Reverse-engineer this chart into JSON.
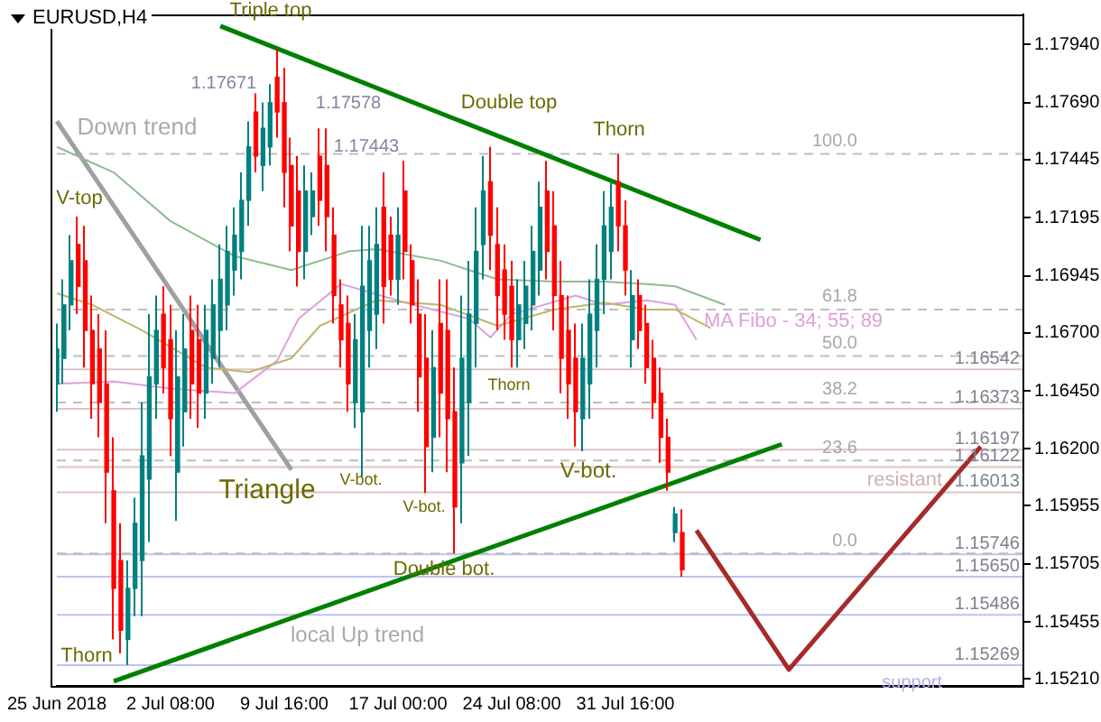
{
  "chart_data": {
    "type": "candlestick",
    "title": "EURUSD,H4",
    "categories": [
      "25 Jun 2018",
      null,
      null,
      null,
      null,
      null,
      null,
      null,
      null,
      null,
      null,
      null,
      null,
      null,
      null,
      null,
      "2 Jul 08:00",
      null,
      null,
      null,
      null,
      null,
      null,
      null,
      null,
      null,
      null,
      null,
      null,
      null,
      null,
      null,
      "9 Jul 16:00",
      null,
      null,
      null,
      null,
      null,
      null,
      null,
      null,
      null,
      null,
      null,
      null,
      null,
      null,
      null,
      "17 Jul 00:00",
      null,
      null,
      null,
      null,
      null,
      null,
      null,
      null,
      null,
      null,
      null,
      null,
      null,
      null,
      null,
      "24 Jul 08:00",
      null,
      null,
      null,
      null,
      null,
      null,
      null,
      null,
      null,
      null,
      null,
      null,
      null,
      null,
      null,
      "31 Jul 16:00",
      null,
      null,
      null,
      null,
      null,
      null,
      null,
      null,
      null,
      null,
      null,
      null,
      null,
      null,
      null,
      null,
      null,
      null,
      null,
      null,
      null,
      null,
      null,
      null,
      null,
      null,
      null,
      null,
      null,
      null,
      null,
      null,
      null,
      null,
      null,
      null,
      null,
      null,
      null,
      null,
      null,
      null,
      null,
      null,
      null,
      null,
      null,
      null,
      null,
      null,
      null,
      null,
      null,
      null,
      null,
      null
    ],
    "ohlc": [
      [
        1.1648,
        1.1674,
        1.1636,
        1.1663
      ],
      [
        1.1659,
        1.1693,
        1.1648,
        1.1682
      ],
      [
        1.1682,
        1.1712,
        1.1671,
        1.1701
      ],
      [
        1.1708,
        1.172,
        1.1678,
        1.169
      ],
      [
        1.1701,
        1.1716,
        1.1655,
        1.1671
      ],
      [
        1.1671,
        1.1686,
        1.1633,
        1.1648
      ],
      [
        1.1663,
        1.1678,
        1.1625,
        1.164
      ],
      [
        1.1648,
        1.1671,
        1.1588,
        1.161
      ],
      [
        1.1602,
        1.1625,
        1.1538,
        1.156
      ],
      [
        1.1572,
        1.1588,
        1.1532,
        1.1542
      ],
      [
        1.1538,
        1.1572,
        1.1527,
        1.156
      ],
      [
        1.156,
        1.1599,
        1.1548,
        1.1588
      ],
      [
        1.1572,
        1.164,
        1.1548,
        1.1617
      ],
      [
        1.1607,
        1.1678,
        1.158,
        1.1651
      ],
      [
        1.1648,
        1.1686,
        1.1633,
        1.1671
      ],
      [
        1.1678,
        1.169,
        1.1644,
        1.1655
      ],
      [
        1.1667,
        1.1682,
        1.1617,
        1.1633
      ],
      [
        1.161,
        1.1671,
        1.1589,
        1.1651
      ],
      [
        1.1636,
        1.1678,
        1.1621,
        1.1663
      ],
      [
        1.1671,
        1.1686,
        1.1633,
        1.1648
      ],
      [
        1.1667,
        1.1682,
        1.1629,
        1.1644
      ],
      [
        1.1644,
        1.1682,
        1.1633,
        1.1671
      ],
      [
        1.1659,
        1.1693,
        1.1648,
        1.1682
      ],
      [
        1.1671,
        1.1708,
        1.1655,
        1.1693
      ],
      [
        1.1682,
        1.1716,
        1.1671,
        1.1705
      ],
      [
        1.1697,
        1.1724,
        1.1686,
        1.1712
      ],
      [
        1.1705,
        1.1739,
        1.1693,
        1.1727
      ],
      [
        1.1727,
        1.1761,
        1.1716,
        1.175
      ],
      [
        1.1765,
        1.1773,
        1.1739,
        1.1746
      ],
      [
        1.1742,
        1.1769,
        1.1731,
        1.1758
      ],
      [
        1.175,
        1.1777,
        1.1742,
        1.1769
      ],
      [
        1.178,
        1.1792,
        1.1754,
        1.1765
      ],
      [
        1.1769,
        1.1784,
        1.1724,
        1.1739
      ],
      [
        1.1742,
        1.1754,
        1.1705,
        1.1716
      ],
      [
        1.1731,
        1.1746,
        1.169,
        1.1705
      ],
      [
        1.1705,
        1.1742,
        1.1693,
        1.1731
      ],
      [
        1.172,
        1.1739,
        1.1712,
        1.1731
      ],
      [
        1.1746,
        1.1758,
        1.1716,
        1.1727
      ],
      [
        1.1742,
        1.1758,
        1.1705,
        1.172
      ],
      [
        1.1712,
        1.1724,
        1.1674,
        1.1686
      ],
      [
        1.1682,
        1.1693,
        1.1655,
        1.1667
      ],
      [
        1.1674,
        1.1686,
        1.1636,
        1.1648
      ],
      [
        1.164,
        1.1678,
        1.1629,
        1.1667
      ],
      [
        1.1636,
        1.1716,
        1.1608,
        1.169
      ],
      [
        1.1671,
        1.1716,
        1.1655,
        1.1701
      ],
      [
        1.1678,
        1.1724,
        1.1663,
        1.1708
      ],
      [
        1.1724,
        1.1739,
        1.1674,
        1.169
      ],
      [
        1.1712,
        1.172,
        1.1686,
        1.1693
      ],
      [
        1.1693,
        1.1724,
        1.1682,
        1.1712
      ],
      [
        1.1731,
        1.1744,
        1.1693,
        1.1705
      ],
      [
        1.1701,
        1.1708,
        1.1674,
        1.1682
      ],
      [
        1.1678,
        1.1693,
        1.1636,
        1.1651
      ],
      [
        1.1659,
        1.1678,
        1.1601,
        1.1621
      ],
      [
        1.1625,
        1.1671,
        1.161,
        1.1655
      ],
      [
        1.1674,
        1.1693,
        1.1625,
        1.1644
      ],
      [
        1.1671,
        1.1693,
        1.161,
        1.1633
      ],
      [
        1.1636,
        1.1655,
        1.1575,
        1.1595
      ],
      [
        1.1614,
        1.1686,
        1.1588,
        1.1659
      ],
      [
        1.164,
        1.1701,
        1.1617,
        1.1678
      ],
      [
        1.1674,
        1.1724,
        1.1655,
        1.1705
      ],
      [
        1.1708,
        1.1746,
        1.1693,
        1.1731
      ],
      [
        1.1735,
        1.175,
        1.1697,
        1.1712
      ],
      [
        1.1708,
        1.1724,
        1.1671,
        1.1686
      ],
      [
        1.1697,
        1.1708,
        1.1667,
        1.1678
      ],
      [
        1.169,
        1.1701,
        1.1655,
        1.1667
      ],
      [
        1.1667,
        1.1693,
        1.1655,
        1.1682
      ],
      [
        1.1674,
        1.1701,
        1.1663,
        1.169
      ],
      [
        1.1682,
        1.1716,
        1.1671,
        1.1705
      ],
      [
        1.1697,
        1.1735,
        1.1686,
        1.1724
      ],
      [
        1.1731,
        1.1744,
        1.1693,
        1.1705
      ],
      [
        1.1716,
        1.1731,
        1.1671,
        1.1686
      ],
      [
        1.1686,
        1.1701,
        1.1644,
        1.1659
      ],
      [
        1.1671,
        1.1686,
        1.1633,
        1.1648
      ],
      [
        1.1659,
        1.1674,
        1.1621,
        1.1636
      ],
      [
        1.1633,
        1.1674,
        1.1619,
        1.1659
      ],
      [
        1.1648,
        1.1693,
        1.1633,
        1.1678
      ],
      [
        1.1671,
        1.1708,
        1.1655,
        1.1693
      ],
      [
        1.1693,
        1.1731,
        1.1678,
        1.1716
      ],
      [
        1.1705,
        1.1735,
        1.1693,
        1.1724
      ],
      [
        1.1735,
        1.1747,
        1.1705,
        1.1716
      ],
      [
        1.1716,
        1.1727,
        1.1686,
        1.1697
      ],
      [
        1.1667,
        1.1697,
        1.1655,
        1.1686
      ],
      [
        1.1686,
        1.1693,
        1.1663,
        1.1671
      ],
      [
        1.1674,
        1.1682,
        1.1648,
        1.1655
      ],
      [
        1.1659,
        1.1667,
        1.1633,
        1.164
      ],
      [
        1.1644,
        1.1655,
        1.1614,
        1.1625
      ],
      [
        1.1625,
        1.1633,
        1.1602,
        1.161
      ],
      [
        1.1584,
        1.1595,
        1.158,
        1.1592
      ],
      [
        1.1584,
        1.1594,
        1.1565,
        1.1568
      ],
      null,
      null,
      null,
      null,
      null,
      null,
      null,
      null,
      null,
      null,
      null,
      null,
      null,
      null,
      null,
      null,
      null,
      null,
      null,
      null,
      null,
      null,
      null,
      null,
      null,
      null,
      null,
      null,
      null,
      null,
      null,
      null,
      null,
      null,
      null,
      null,
      null,
      null,
      null,
      null,
      null,
      null,
      null,
      null,
      null,
      null,
      null,
      null
    ],
    "series": [
      {
        "type": "line",
        "color": "#8fbc8f",
        "values": [
          1.175,
          null,
          null,
          null,
          null,
          null,
          null,
          null,
          1.1739,
          null,
          null,
          null,
          null,
          null,
          null,
          null,
          1.1718,
          null,
          null,
          null,
          null,
          null,
          null,
          null,
          null,
          1.1703,
          null,
          null,
          null,
          null,
          null,
          null,
          null,
          1.1697,
          null,
          null,
          null,
          null,
          null,
          null,
          null,
          1.1705,
          null,
          null,
          null,
          1.1706,
          null,
          null,
          null,
          null,
          null,
          null,
          null,
          null,
          1.1701,
          null,
          null,
          null,
          null,
          null,
          null,
          null,
          1.1693,
          null,
          null,
          null,
          null,
          null,
          null,
          null,
          1.1692,
          null,
          null,
          null,
          null,
          null,
          null,
          1.1692,
          null,
          null,
          null,
          null,
          null,
          1.1691,
          null,
          null,
          null,
          1.169,
          null,
          null,
          null,
          null,
          null,
          null,
          1.1682,
          null,
          null,
          null,
          null,
          null,
          null,
          null,
          null,
          null,
          null,
          null,
          null,
          null,
          null,
          null,
          null,
          null,
          null,
          null,
          null,
          null,
          null,
          null,
          null,
          null,
          null,
          null,
          null,
          null,
          null,
          null,
          null,
          null,
          null,
          null,
          null,
          null,
          null,
          null,
          null,
          null,
          null
        ]
      },
      {
        "type": "line",
        "color": "#bdb76b",
        "values": [
          1.1687,
          null,
          null,
          null,
          null,
          1.1682,
          null,
          null,
          null,
          null,
          null,
          null,
          1.1671,
          null,
          null,
          null,
          null,
          null,
          null,
          null,
          null,
          1.1655,
          null,
          null,
          null,
          null,
          null,
          1.1653,
          null,
          null,
          null,
          null,
          null,
          1.1659,
          null,
          null,
          null,
          1.1673,
          null,
          null,
          null,
          null,
          null,
          null,
          null,
          1.1684,
          null,
          null,
          null,
          null,
          null,
          null,
          null,
          null,
          1.1682,
          null,
          null,
          null,
          null,
          null,
          null,
          null,
          1.1673,
          null,
          null,
          null,
          null,
          null,
          null,
          null,
          1.168,
          null,
          null,
          null,
          null,
          null,
          null,
          1.1683,
          null,
          null,
          null,
          null,
          null,
          1.168,
          null,
          null,
          null,
          1.168,
          null,
          null,
          null,
          null,
          1.1672,
          null,
          null,
          null,
          null,
          null,
          null,
          null,
          null,
          null,
          null,
          null,
          null,
          null,
          null,
          null,
          null,
          null,
          null,
          null,
          null,
          null,
          null,
          null,
          null,
          null,
          null,
          null,
          null,
          null,
          null,
          null,
          null,
          null,
          null,
          null,
          null,
          null,
          null,
          null,
          null,
          null,
          null,
          null,
          null
        ]
      },
      {
        "type": "line",
        "color": "#dda0dd",
        "values": [
          1.1648,
          null,
          null,
          null,
          null,
          null,
          null,
          null,
          1.1649,
          null,
          null,
          null,
          null,
          null,
          null,
          null,
          1.1646,
          null,
          null,
          null,
          null,
          null,
          null,
          null,
          null,
          1.1644,
          null,
          null,
          null,
          null,
          null,
          1.1658,
          null,
          null,
          1.1676,
          null,
          null,
          null,
          null,
          null,
          1.1691,
          null,
          null,
          null,
          null,
          null,
          null,
          null,
          null,
          1.1683,
          null,
          null,
          null,
          null,
          null,
          null,
          null,
          null,
          1.1676,
          null,
          null,
          1.1668,
          null,
          null,
          1.1678,
          null,
          null,
          null,
          null,
          null,
          null,
          null,
          null,
          1.1686,
          null,
          null,
          null,
          1.1682,
          null,
          null,
          null,
          null,
          null,
          1.1684,
          null,
          null,
          null,
          1.1682,
          null,
          null,
          1.1667,
          null,
          null,
          null,
          null,
          null,
          null,
          null,
          null,
          null,
          null,
          null,
          null,
          null,
          null,
          null,
          null,
          null,
          null,
          null,
          null,
          null,
          null,
          null,
          null,
          null,
          null,
          null,
          null,
          null,
          null,
          null,
          null,
          null,
          null,
          null,
          null,
          null,
          null,
          null,
          null,
          null,
          null,
          null,
          null,
          null,
          null
        ]
      },
      {
        "type": "line",
        "color": "#008000",
        "values": [
          null,
          null,
          null,
          null,
          null,
          null,
          null,
          null,
          null,
          null,
          null,
          null,
          null,
          null,
          null,
          null,
          null,
          null,
          null,
          null,
          null,
          null,
          null,
          1.1802,
          null,
          null,
          null,
          null,
          null,
          null,
          null,
          null,
          null,
          null,
          null,
          null,
          null,
          null,
          null,
          null,
          null,
          null,
          null,
          null,
          null,
          null,
          null,
          null,
          null,
          null,
          null,
          null,
          null,
          null,
          null,
          null,
          null,
          null,
          null,
          null,
          null,
          null,
          null,
          null,
          null,
          null,
          null,
          null,
          null,
          null,
          null,
          null,
          null,
          null,
          null,
          null,
          null,
          null,
          null,
          null,
          null,
          null,
          null,
          null,
          null,
          null,
          null,
          null,
          null,
          null,
          null,
          null,
          null,
          null,
          null,
          null,
          null,
          null,
          null,
          1.171,
          null,
          null,
          null,
          null,
          null,
          null,
          null,
          null,
          null,
          null,
          null,
          null,
          null,
          null,
          null,
          null,
          null,
          null,
          null,
          null,
          null,
          null,
          null,
          null,
          null,
          null,
          null,
          null,
          null,
          null,
          null,
          null,
          null,
          null,
          null,
          null,
          null
        ]
      },
      {
        "type": "line",
        "color": "#008000",
        "values": [
          null,
          null,
          null,
          null,
          null,
          null,
          null,
          null,
          1.152,
          null,
          null,
          null,
          null,
          null,
          null,
          null,
          null,
          null,
          null,
          null,
          null,
          null,
          null,
          null,
          null,
          null,
          null,
          null,
          null,
          null,
          null,
          null,
          null,
          null,
          null,
          null,
          null,
          null,
          null,
          null,
          null,
          null,
          null,
          null,
          null,
          null,
          null,
          null,
          null,
          null,
          null,
          null,
          null,
          null,
          null,
          null,
          null,
          null,
          null,
          null,
          null,
          null,
          null,
          null,
          null,
          null,
          null,
          null,
          null,
          null,
          null,
          null,
          null,
          null,
          null,
          null,
          null,
          null,
          null,
          null,
          null,
          null,
          null,
          null,
          null,
          null,
          null,
          null,
          null,
          null,
          null,
          null,
          null,
          null,
          null,
          null,
          null,
          null,
          null,
          null,
          null,
          null,
          1.1622,
          null,
          null,
          null,
          null,
          null,
          null,
          null,
          null,
          null,
          null,
          null,
          null,
          null,
          null,
          null,
          null,
          null,
          null,
          null,
          null,
          null,
          null,
          null,
          null,
          null,
          null,
          null,
          null,
          null,
          null,
          null,
          null,
          null,
          null
        ]
      },
      {
        "type": "line",
        "color": "#a0a0a0",
        "values": [
          1.1761,
          null,
          null,
          null,
          null,
          null,
          null,
          null,
          null,
          null,
          null,
          null,
          null,
          null,
          null,
          null,
          null,
          null,
          null,
          null,
          null,
          null,
          null,
          null,
          null,
          null,
          null,
          null,
          null,
          null,
          null,
          null,
          null,
          1.1611,
          null,
          null,
          null,
          null,
          null,
          null,
          null,
          null,
          null,
          null,
          null,
          null,
          null,
          null,
          null,
          null,
          null,
          null,
          null,
          null,
          null,
          null,
          null,
          null,
          null,
          null,
          null,
          null,
          null,
          null,
          null,
          null,
          null,
          null,
          null,
          null,
          null,
          null,
          null,
          null,
          null,
          null,
          null,
          null,
          null,
          null,
          null,
          null,
          null,
          null,
          null,
          null,
          null,
          null,
          null,
          null,
          null,
          null,
          null,
          null,
          null,
          null,
          null,
          null,
          null,
          null,
          null,
          null,
          null,
          null,
          null,
          null,
          null,
          null,
          null,
          null,
          null,
          null,
          null,
          null,
          null,
          null,
          null,
          null,
          null,
          null,
          null,
          null,
          null,
          null,
          null,
          null,
          null,
          null,
          null,
          null,
          null,
          null,
          null,
          null,
          null,
          null,
          null
        ]
      },
      {
        "type": "line",
        "color": "#a52a2a",
        "values": [
          null,
          null,
          null,
          null,
          null,
          null,
          null,
          null,
          null,
          null,
          null,
          null,
          null,
          null,
          null,
          null,
          null,
          null,
          null,
          null,
          null,
          null,
          null,
          null,
          null,
          null,
          null,
          null,
          null,
          null,
          null,
          null,
          null,
          null,
          null,
          null,
          null,
          null,
          null,
          null,
          null,
          null,
          null,
          null,
          null,
          null,
          null,
          null,
          null,
          null,
          null,
          null,
          null,
          null,
          null,
          null,
          null,
          null,
          null,
          null,
          null,
          null,
          null,
          null,
          null,
          null,
          null,
          null,
          null,
          null,
          null,
          null,
          null,
          null,
          null,
          null,
          null,
          null,
          null,
          null,
          null,
          null,
          null,
          null,
          null,
          null,
          null,
          null,
          null,
          null,
          1.1585,
          null,
          null,
          null,
          null,
          null,
          null,
          null,
          null,
          null,
          null,
          null,
          null,
          1.1525,
          null,
          null,
          null,
          null,
          null,
          null,
          null,
          null,
          null,
          null,
          null,
          null,
          null,
          null,
          null,
          null,
          null,
          null,
          null,
          null,
          null,
          null,
          null,
          null,
          null,
          null,
          1.1621,
          null,
          null,
          null,
          null,
          null,
          null
        ]
      }
    ],
    "ylim": [
      1.1518,
      1.1807
    ],
    "yticks": [
      {
        "value": 1.1794,
        "label": "1.17940"
      },
      {
        "value": 1.1769,
        "label": "1.17690"
      },
      {
        "value": 1.17445,
        "label": "1.17445"
      },
      {
        "value": 1.17195,
        "label": "1.17195"
      },
      {
        "value": 1.16945,
        "label": "1.16945"
      },
      {
        "value": 1.167,
        "label": "1.16700"
      },
      {
        "value": 1.1645,
        "label": "1.16450"
      },
      {
        "value": 1.162,
        "label": "1.16200"
      },
      {
        "value": 1.15955,
        "label": "1.15955"
      },
      {
        "value": 1.15705,
        "label": "1.15705"
      },
      {
        "value": 1.15455,
        "label": "1.15455"
      },
      {
        "value": 1.1521,
        "label": "1.15210"
      }
    ],
    "ref_lines": [
      {
        "axis": "y",
        "value": 1.16542,
        "label": "1.16542",
        "color": "#dcc4c4"
      },
      {
        "axis": "y",
        "value": 1.16373,
        "label": "1.16373",
        "color": "#dcc4c4"
      },
      {
        "axis": "y",
        "value": 1.16197,
        "label": "1.16197",
        "color": "#dcc4c4"
      },
      {
        "axis": "y",
        "value": 1.16122,
        "label": "1.16122",
        "color": "#dcc4c4"
      },
      {
        "axis": "y",
        "value": 1.16013,
        "label": "1.16013",
        "color": "#dcc4c4"
      },
      {
        "axis": "y",
        "value": 1.15746,
        "label": "1.15746",
        "color": "#c0c0f4"
      },
      {
        "axis": "y",
        "value": 1.1565,
        "label": "1.15650",
        "color": "#c0c0f4"
      },
      {
        "axis": "y",
        "value": 1.15486,
        "label": "1.15486",
        "color": "#c0c0f4"
      },
      {
        "axis": "y",
        "value": 1.15269,
        "label": "1.15269",
        "color": "#c0c0f4"
      },
      {
        "axis": "y",
        "value": 1.1747,
        "color": "#bdbdbd",
        "line_style": "dashed"
      },
      {
        "axis": "y",
        "value": 1.168,
        "color": "#bdbdbd",
        "line_style": "dashed"
      },
      {
        "axis": "y",
        "value": 1.166,
        "color": "#bdbdbd",
        "line_style": "dashed"
      },
      {
        "axis": "y",
        "value": 1.164,
        "color": "#bdbdbd",
        "line_style": "dashed"
      },
      {
        "axis": "y",
        "value": 1.1615,
        "color": "#bdbdbd",
        "line_style": "dashed"
      },
      {
        "axis": "y",
        "value": 1.1575,
        "color": "#bdbdbd",
        "line_style": "dashed"
      }
    ],
    "annotations": [
      "Triple top",
      "Double top",
      "Thorn",
      "Down trend",
      "V-top",
      "1.17671",
      "1.17578",
      "1.17443",
      {
        "text": "Thorn",
        "y": 1.1655
      },
      "V-bot.",
      {
        "text": "V-bot.",
        "y": 1.1601
      },
      {
        "text": "V-bot.",
        "y": 1.1619
      },
      "Triangle",
      {
        "text": "Double bot.",
        "y": 1.1575
      },
      "local Up trend",
      {
        "text": "Thorn",
        "y": 1.1527
      },
      "MA Fibo - 34; 55; 89",
      "resistant",
      "support",
      {
        "text": "100.0",
        "y": 1.1747
      },
      {
        "text": "61.8",
        "y": 1.168
      },
      {
        "text": "50.0",
        "y": 1.166
      },
      {
        "text": "38.2",
        "y": 1.164
      },
      {
        "text": "23.6",
        "y": 1.1615
      },
      {
        "text": "0.0",
        "y": 1.1575
      }
    ],
    "grid": false,
    "legend": false
  }
}
